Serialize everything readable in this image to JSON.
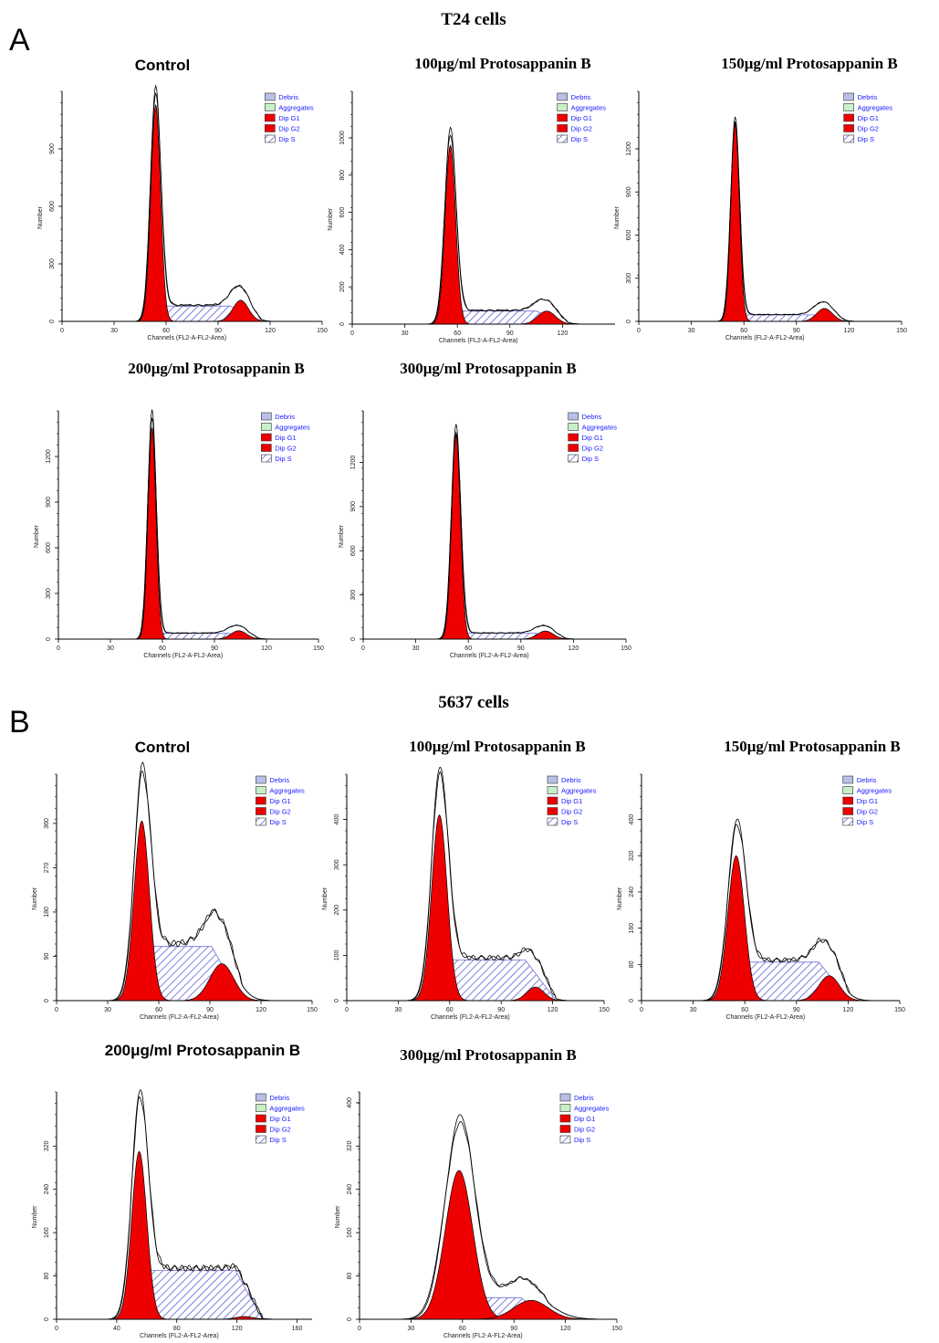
{
  "figure": {
    "panels": [
      {
        "letter": "A",
        "title": "T24 cells"
      },
      {
        "letter": "B",
        "title": "5637 cells"
      }
    ]
  },
  "legend": [
    "Debris",
    "Aggregates",
    "Dip G1",
    "Dip G2",
    "Dip S"
  ],
  "colors": {
    "g1": "#ee0000",
    "g2": "#ee0000",
    "s_hatch": "#8a8ae6",
    "debris": "#b8c0e8",
    "aggregates": "#c8f0c8",
    "envelope": "#000000",
    "legend_text": "#1a1aff"
  },
  "chart_data": [
    {
      "type": "area",
      "panel": "A",
      "title": "Control",
      "title_font": "sans",
      "xlabel": "Channels (FL2-A-FL2-Area)",
      "ylabel": "Number",
      "xticks": [
        0,
        30,
        60,
        90,
        120,
        150
      ],
      "yticks": [
        0,
        300,
        600,
        900
      ],
      "ylim": [
        0,
        1200
      ],
      "xlim": [
        0,
        150
      ],
      "g1": {
        "mean": 54,
        "sd": 2.8,
        "peak": 1130
      },
      "g2": {
        "mean": 103,
        "sd": 4.5,
        "peak": 110
      },
      "s": {
        "start": 54,
        "end": 103,
        "height": 80
      },
      "envelope_peak": 1190
    },
    {
      "type": "area",
      "panel": "A",
      "title": "100μg/ml Protosappanin B",
      "title_font": "serif",
      "xlabel": "Channels (FL2-A-FL2-Area)",
      "ylabel": "Number",
      "xticks": [
        0,
        30,
        60,
        90,
        120
      ],
      "yticks": [
        0,
        200,
        400,
        600,
        800,
        1000
      ],
      "ylim": [
        0,
        1250
      ],
      "xlim": [
        0,
        150
      ],
      "g1": {
        "mean": 56,
        "sd": 3,
        "peak": 960
      },
      "g2": {
        "mean": 111,
        "sd": 5,
        "peak": 70
      },
      "s": {
        "start": 56,
        "end": 111,
        "height": 70
      },
      "envelope_peak": 1020
    },
    {
      "type": "area",
      "panel": "A",
      "title": "150μg/ml Protosappanin B",
      "title_font": "serif",
      "xlabel": "Channels (FL2-A-FL2-Area)",
      "ylabel": "Number",
      "xticks": [
        0,
        30,
        60,
        90,
        120,
        150
      ],
      "yticks": [
        0,
        300,
        600,
        900,
        1200
      ],
      "ylim": [
        0,
        1600
      ],
      "xlim": [
        0,
        150
      ],
      "g1": {
        "mean": 55,
        "sd": 2.4,
        "peak": 1390
      },
      "g2": {
        "mean": 106,
        "sd": 4.5,
        "peak": 90
      },
      "s": {
        "start": 55,
        "end": 106,
        "height": 45
      },
      "envelope_peak": 1400
    },
    {
      "type": "area",
      "panel": "A",
      "title": "200μg/ml Protosappanin B",
      "title_font": "serif",
      "xlabel": "Channels (FL2-A-FL2-Area)",
      "ylabel": "Number",
      "xticks": [
        0,
        30,
        60,
        90,
        120,
        150
      ],
      "yticks": [
        0,
        300,
        600,
        900,
        1200
      ],
      "ylim": [
        0,
        1500
      ],
      "xlim": [
        0,
        150
      ],
      "g1": {
        "mean": 54,
        "sd": 2.3,
        "peak": 1390
      },
      "g2": {
        "mean": 104,
        "sd": 4.5,
        "peak": 55
      },
      "s": {
        "start": 54,
        "end": 104,
        "height": 38
      },
      "envelope_peak": 1490
    },
    {
      "type": "area",
      "panel": "A",
      "title": "300μg/ml Protosappanin B",
      "title_font": "serif",
      "xlabel": "Channels (FL2-A-FL2-Area)",
      "ylabel": "Number",
      "xticks": [
        0,
        30,
        60,
        90,
        120,
        150
      ],
      "yticks": [
        0,
        300,
        600,
        900,
        1200
      ],
      "ylim": [
        0,
        1550
      ],
      "xlim": [
        0,
        150
      ],
      "g1": {
        "mean": 53,
        "sd": 2.5,
        "peak": 1390
      },
      "g2": {
        "mean": 104,
        "sd": 4.5,
        "peak": 55
      },
      "s": {
        "start": 53,
        "end": 104,
        "height": 40
      },
      "envelope_peak": 1440
    },
    {
      "type": "area",
      "panel": "B",
      "title": "Control",
      "title_font": "sans",
      "xlabel": "Channels (FL2-A-FL2-Area)",
      "ylabel": "Number",
      "xticks": [
        0,
        30,
        60,
        90,
        120,
        150
      ],
      "yticks": [
        0,
        90,
        180,
        270,
        360
      ],
      "ylim": [
        0,
        460
      ],
      "xlim": [
        0,
        150
      ],
      "g1": {
        "mean": 50,
        "sd": 4.5,
        "peak": 365
      },
      "g2": {
        "mean": 97,
        "sd": 7,
        "peak": 75
      },
      "s": {
        "start": 50,
        "end": 97,
        "height": 110
      },
      "envelope_peak": 420
    },
    {
      "type": "area",
      "panel": "B",
      "title": "100μg/ml Protosappanin B",
      "title_font": "serif",
      "xlabel": "Channels (FL2-A-FL2-Area)",
      "ylabel": "Number",
      "xticks": [
        0,
        30,
        60,
        90,
        120,
        150
      ],
      "yticks": [
        0,
        100,
        200,
        300,
        400
      ],
      "ylim": [
        0,
        500
      ],
      "xlim": [
        0,
        150
      ],
      "g1": {
        "mean": 54,
        "sd": 4.5,
        "peak": 410
      },
      "g2": {
        "mean": 110,
        "sd": 5,
        "peak": 30
      },
      "s": {
        "start": 54,
        "end": 110,
        "height": 90
      },
      "envelope_peak": 470
    },
    {
      "type": "area",
      "panel": "B",
      "title": "150μg/ml Protosappanin B",
      "title_font": "serif",
      "xlabel": "Channels (FL2-A-FL2-Area)",
      "ylabel": "Number",
      "xticks": [
        0,
        30,
        60,
        90,
        120,
        150
      ],
      "yticks": [
        0,
        80,
        160,
        240,
        320,
        400
      ],
      "ylim": [
        0,
        500
      ],
      "xlim": [
        0,
        150
      ],
      "g1": {
        "mean": 55,
        "sd": 4.8,
        "peak": 320
      },
      "g2": {
        "mean": 109,
        "sd": 6,
        "peak": 55
      },
      "s": {
        "start": 55,
        "end": 109,
        "height": 85
      },
      "envelope_peak": 355
    },
    {
      "type": "area",
      "panel": "B",
      "title": "200μg/ml Protosappanin B",
      "title_font": "sans",
      "xlabel": "Channels (FL2-A-FL2-Area)",
      "ylabel": "Number",
      "xticks": [
        0,
        40,
        80,
        120,
        160
      ],
      "yticks": [
        0,
        80,
        160,
        240,
        320
      ],
      "ylim": [
        0,
        420
      ],
      "xlim": [
        0,
        170
      ],
      "g1": {
        "mean": 55,
        "sd": 5,
        "peak": 310
      },
      "g2": {
        "mean": 125,
        "sd": 6,
        "peak": 5
      },
      "s": {
        "start": 55,
        "end": 125,
        "height": 90
      },
      "envelope_peak": 375
    },
    {
      "type": "area",
      "panel": "B",
      "title": "300μg/ml Protosappanin B",
      "title_font": "serif",
      "xlabel": "Channels (FL2-A-FL2-Area)",
      "ylabel": "Number",
      "xticks": [
        0,
        30,
        60,
        90,
        120,
        150
      ],
      "yticks": [
        0,
        80,
        160,
        240,
        320,
        400
      ],
      "ylim": [
        0,
        420
      ],
      "xlim": [
        0,
        150
      ],
      "g1": {
        "mean": 58,
        "sd": 8,
        "peak": 275
      },
      "g2": {
        "mean": 100,
        "sd": 10,
        "peak": 35
      },
      "s": {
        "start": 58,
        "end": 100,
        "height": 40
      },
      "envelope_peak": 355
    }
  ]
}
